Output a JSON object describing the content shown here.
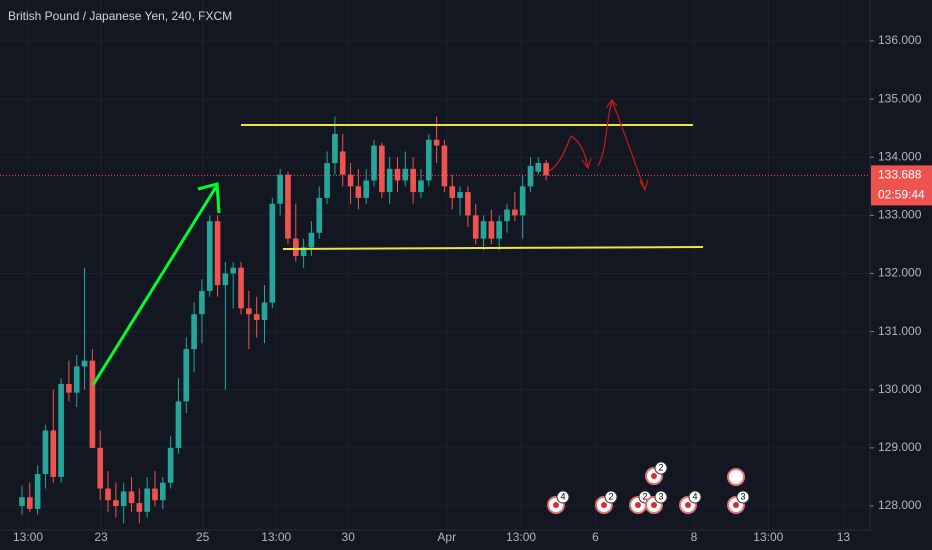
{
  "chart_data": {
    "type": "candlestick",
    "title": "British Pound / Japanese Yen, 240, FXCM",
    "x": [
      0,
      1,
      2,
      3,
      4,
      5,
      6,
      7,
      8,
      9,
      10,
      11,
      12,
      13,
      14,
      15,
      16,
      17,
      18,
      19,
      20,
      21,
      22,
      23,
      24,
      25,
      26,
      27,
      28,
      29,
      30,
      31,
      32,
      33,
      34,
      35,
      36,
      37,
      38,
      39,
      40,
      41,
      42,
      43,
      44,
      45,
      46,
      47,
      48,
      49,
      50,
      51,
      52,
      53,
      54,
      55,
      56,
      57,
      58,
      59,
      60,
      61,
      62,
      63,
      64,
      65,
      66,
      67
    ],
    "open": [
      128.0,
      128.15,
      127.95,
      128.55,
      129.3,
      128.5,
      130.1,
      129.95,
      130.4,
      130.5,
      129.0,
      128.3,
      128.1,
      128.0,
      128.25,
      128.05,
      127.9,
      128.3,
      128.1,
      128.4,
      129.0,
      129.8,
      130.7,
      131.3,
      131.7,
      132.9,
      131.8,
      132.0,
      132.1,
      131.4,
      131.3,
      131.2,
      131.5,
      133.2,
      133.7,
      132.6,
      132.3,
      132.45,
      132.7,
      133.3,
      133.9,
      134.1,
      133.7,
      133.5,
      133.3,
      133.6,
      134.2,
      133.4,
      133.8,
      133.6,
      133.8,
      133.4,
      133.6,
      134.3,
      134.2,
      133.5,
      133.3,
      133.4,
      133.0,
      132.6,
      132.9,
      132.6,
      132.9,
      133.1,
      133.0,
      133.5,
      133.75,
      133.9
    ],
    "high": [
      128.35,
      128.4,
      128.7,
      129.4,
      130.0,
      130.2,
      130.5,
      130.6,
      132.1,
      130.7,
      129.3,
      128.6,
      128.4,
      128.4,
      128.5,
      128.3,
      128.5,
      128.6,
      128.5,
      129.2,
      130.2,
      130.9,
      131.5,
      131.9,
      133.0,
      133.0,
      132.2,
      132.2,
      132.2,
      131.7,
      131.6,
      131.8,
      133.3,
      133.8,
      133.75,
      133.2,
      132.6,
      132.9,
      133.5,
      134.1,
      134.7,
      134.4,
      133.9,
      133.8,
      133.8,
      134.3,
      134.25,
      134.0,
      134.0,
      134.1,
      134.0,
      133.8,
      134.4,
      134.7,
      134.3,
      133.7,
      133.5,
      133.5,
      133.2,
      133.0,
      133.1,
      133.0,
      133.2,
      133.4,
      133.7,
      134.0,
      134.0,
      133.95
    ],
    "low": [
      127.85,
      127.9,
      127.85,
      128.3,
      128.4,
      128.4,
      129.8,
      129.7,
      130.0,
      129.0,
      128.1,
      127.9,
      127.8,
      127.7,
      127.9,
      127.7,
      127.8,
      128.0,
      127.95,
      128.3,
      128.9,
      129.6,
      130.3,
      130.8,
      131.6,
      131.6,
      130.0,
      131.4,
      131.3,
      130.7,
      130.9,
      130.8,
      131.4,
      133.0,
      132.5,
      132.2,
      132.1,
      132.3,
      132.6,
      133.2,
      133.7,
      133.5,
      133.2,
      133.1,
      133.2,
      133.5,
      133.3,
      133.2,
      133.4,
      133.5,
      133.2,
      133.3,
      133.5,
      133.9,
      133.4,
      133.1,
      133.0,
      132.8,
      132.5,
      132.4,
      132.5,
      132.4,
      132.7,
      132.9,
      132.6,
      133.4,
      133.7,
      133.6
    ],
    "close": [
      128.15,
      127.95,
      128.55,
      129.3,
      128.5,
      130.1,
      129.95,
      130.4,
      130.5,
      129.0,
      128.3,
      128.1,
      128.0,
      128.25,
      128.05,
      127.9,
      128.3,
      128.1,
      128.4,
      129.0,
      129.8,
      130.7,
      131.3,
      131.7,
      132.9,
      131.8,
      132.0,
      132.1,
      131.4,
      131.3,
      131.2,
      131.5,
      133.2,
      133.7,
      132.6,
      132.3,
      132.45,
      132.7,
      133.3,
      133.9,
      134.4,
      133.7,
      133.5,
      133.3,
      133.6,
      134.2,
      133.4,
      133.8,
      133.6,
      133.8,
      133.4,
      133.6,
      134.3,
      134.2,
      133.5,
      133.3,
      133.4,
      133.0,
      132.6,
      132.9,
      132.6,
      132.9,
      133.1,
      133.0,
      133.5,
      133.85,
      133.9,
      133.688
    ],
    "up_color": "#26a69a",
    "down_color": "#ef5350",
    "xlim": [
      -2.81,
      108.4
    ],
    "xticks": [
      {
        "value": 0.77,
        "label": "13:00"
      },
      {
        "value": 10.1,
        "label": "23"
      },
      {
        "value": 23.1,
        "label": "25"
      },
      {
        "value": 32.5,
        "label": "13:00"
      },
      {
        "value": 41.7,
        "label": "30"
      },
      {
        "value": 54.3,
        "label": "Apr"
      },
      {
        "value": 63.8,
        "label": "13:00"
      },
      {
        "value": 73.3,
        "label": "6"
      },
      {
        "value": 85.9,
        "label": "8"
      },
      {
        "value": 95.4,
        "label": "13:00"
      },
      {
        "value": 105.0,
        "label": "13"
      }
    ],
    "ylim": [
      127.587,
      136.705
    ],
    "yticks": [
      {
        "value": 128,
        "label": "128.000"
      },
      {
        "value": 129,
        "label": "129.000"
      },
      {
        "value": 130,
        "label": "130.000"
      },
      {
        "value": 131,
        "label": "131.000"
      },
      {
        "value": 132,
        "label": "132.000"
      },
      {
        "value": 133,
        "label": "133.000"
      },
      {
        "value": 134,
        "label": "134.000"
      },
      {
        "value": 135,
        "label": "135.000"
      },
      {
        "value": 136,
        "label": "136.000"
      }
    ],
    "grid": true,
    "last_price": {
      "value": 133.688,
      "label": "133.688"
    },
    "countdown": "02:59:44",
    "events": [
      "4",
      "2",
      "2",
      "3",
      "2",
      "4",
      "3"
    ]
  }
}
